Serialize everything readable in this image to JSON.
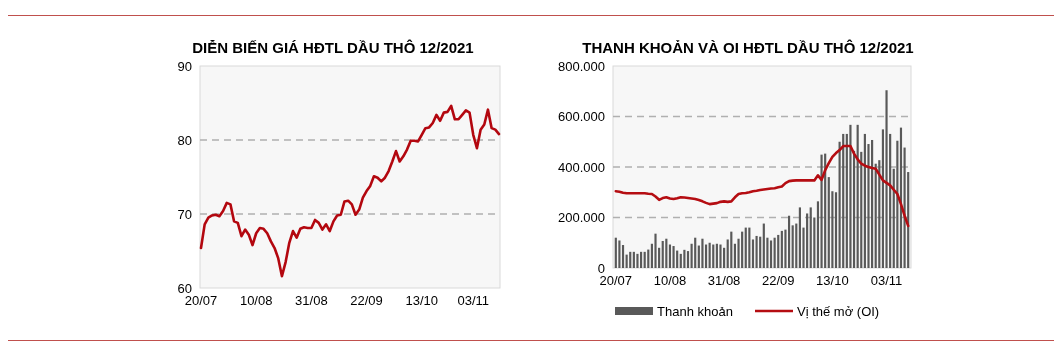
{
  "chart_data": [
    {
      "type": "line",
      "title": "DIỄN BIẾN GIÁ HĐTL DẦU THÔ 12/2021",
      "color": "#b3070f",
      "categories": [
        "20/07",
        null,
        null,
        null,
        null,
        null,
        null,
        null,
        null,
        null,
        null,
        null,
        null,
        null,
        null,
        "10/08",
        null,
        null,
        null,
        null,
        null,
        null,
        null,
        null,
        null,
        null,
        null,
        null,
        null,
        null,
        "31/08",
        null,
        null,
        null,
        null,
        null,
        null,
        null,
        null,
        null,
        null,
        null,
        null,
        null,
        null,
        "22/09",
        null,
        null,
        null,
        null,
        null,
        null,
        null,
        null,
        null,
        null,
        null,
        null,
        null,
        null,
        "13/10",
        null,
        null,
        null,
        null,
        null,
        null,
        null,
        null,
        null,
        null,
        null,
        null,
        null,
        "03/11",
        null,
        null,
        null,
        null,
        null,
        null,
        null
      ],
      "values": [
        65.4,
        68.6,
        69.5,
        69.8,
        69.9,
        69.7,
        70.4,
        71.5,
        71.3,
        69,
        68.8,
        67,
        67.9,
        67.2,
        65.8,
        67.4,
        68.1,
        68,
        67.4,
        66.3,
        65.4,
        64,
        61.6,
        63.5,
        66.1,
        67.7,
        66.8,
        68,
        68.2,
        68.1,
        68.1,
        69.2,
        68.8,
        67.9,
        68.6,
        67.7,
        69,
        69.8,
        69.9,
        71.7,
        71.8,
        71.3,
        69.9,
        70.6,
        72.2,
        73.1,
        73.8,
        75.1,
        74.9,
        74.4,
        74.9,
        75.8,
        77.1,
        78.5,
        77.1,
        77.8,
        78.7,
        79.9,
        79.9,
        79.8,
        80.7,
        81.6,
        81.7,
        82.3,
        83.4,
        82.6,
        83.7,
        83.8,
        84.6,
        82.8,
        82.8,
        83.4,
        84,
        83.7,
        80.7,
        78.9,
        81.4,
        82.1,
        84.1,
        81.6,
        81.4,
        80.8
      ],
      "ylim": [
        60,
        90
      ],
      "yticks": [
        60,
        70,
        80,
        90
      ],
      "grid": "y"
    },
    {
      "type": "bar",
      "title": "THANH KHOẢN VÀ OI HĐTL DẦU THÔ 12/2021",
      "categories": [
        "20/07",
        null,
        null,
        null,
        null,
        null,
        null,
        null,
        null,
        null,
        null,
        null,
        null,
        null,
        null,
        "10/08",
        null,
        null,
        null,
        null,
        null,
        null,
        null,
        null,
        null,
        null,
        null,
        null,
        null,
        null,
        "31/08",
        null,
        null,
        null,
        null,
        null,
        null,
        null,
        null,
        null,
        null,
        null,
        null,
        null,
        null,
        "22/09",
        null,
        null,
        null,
        null,
        null,
        null,
        null,
        null,
        null,
        null,
        null,
        null,
        null,
        null,
        "13/10",
        null,
        null,
        null,
        null,
        null,
        null,
        null,
        null,
        null,
        null,
        null,
        null,
        null,
        null,
        "03/11",
        null,
        null,
        null,
        null,
        null,
        null
      ],
      "series": [
        {
          "name": "Thanh khoản",
          "color": "#595959",
          "values": [
            120000,
            109000,
            91000,
            53000,
            64000,
            64000,
            56000,
            64000,
            64000,
            73000,
            96000,
            136000,
            80000,
            107000,
            116000,
            93000,
            87000,
            69000,
            56000,
            72000,
            67000,
            96000,
            120000,
            89000,
            116000,
            93000,
            100000,
            93000,
            96000,
            93000,
            80000,
            113000,
            144000,
            96000,
            116000,
            144000,
            160000,
            160000,
            113000,
            127000,
            124000,
            176000,
            120000,
            109000,
            120000,
            131000,
            147000,
            152000,
            207000,
            169000,
            176000,
            240000,
            160000,
            216000,
            240000,
            200000,
            264000,
            449000,
            453000,
            360000,
            304000,
            300000,
            500000,
            531000,
            531000,
            567000,
            464000,
            567000,
            460000,
            531000,
            491000,
            507000,
            413000,
            427000,
            549000,
            704000,
            531000,
            393000,
            504000,
            556000,
            477000,
            380000
          ]
        },
        {
          "name": "Vị thế mở (OI)",
          "type": "line",
          "color": "#b50d12",
          "values": [
            304000,
            302000,
            298000,
            296000,
            296000,
            296000,
            296000,
            296000,
            296000,
            294000,
            293000,
            283000,
            270000,
            277000,
            280000,
            275000,
            273000,
            276000,
            280000,
            279000,
            277000,
            275000,
            273000,
            269000,
            264000,
            258000,
            253000,
            255000,
            257000,
            262000,
            264000,
            262000,
            264000,
            280000,
            293000,
            296000,
            297000,
            300000,
            304000,
            306000,
            309000,
            311000,
            313000,
            315000,
            316000,
            320000,
            323000,
            336000,
            344000,
            346000,
            347000,
            347000,
            347000,
            347000,
            347000,
            347000,
            367000,
            349000,
            387000,
            415000,
            440000,
            455000,
            467000,
            483000,
            483000,
            483000,
            453000,
            430000,
            413000,
            405000,
            400000,
            396000,
            393000,
            370000,
            347000,
            337000,
            327000,
            310000,
            293000,
            253000,
            207000,
            167000
          ]
        }
      ],
      "ylim": [
        0,
        800000
      ],
      "yticks": [
        0,
        {
          "value": 200000,
          "label": "200.000"
        },
        {
          "value": 400000,
          "label": "400.000"
        },
        {
          "value": 600000,
          "label": "600.000"
        },
        {
          "value": 800000,
          "label": "800.000"
        }
      ],
      "grid": "y",
      "legend": "bottom"
    }
  ]
}
